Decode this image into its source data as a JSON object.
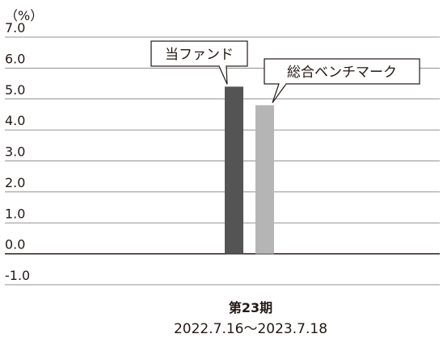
{
  "chart_data": {
    "type": "bar",
    "unit_label": "（%）",
    "y_ticks": [
      "7.0",
      "6.0",
      "5.0",
      "4.0",
      "3.0",
      "2.0",
      "1.0",
      "0.0",
      "-1.0"
    ],
    "ylim": [
      -1.0,
      7.0
    ],
    "grid": true,
    "categories": [
      "第23期"
    ],
    "period": "2022.7.16～2023.7.18",
    "series": [
      {
        "name": "当ファンド",
        "values": [
          5.4
        ],
        "color": "#545454"
      },
      {
        "name": "総合ベンチマーク",
        "values": [
          4.8
        ],
        "color": "#b5b5b5"
      }
    ]
  }
}
